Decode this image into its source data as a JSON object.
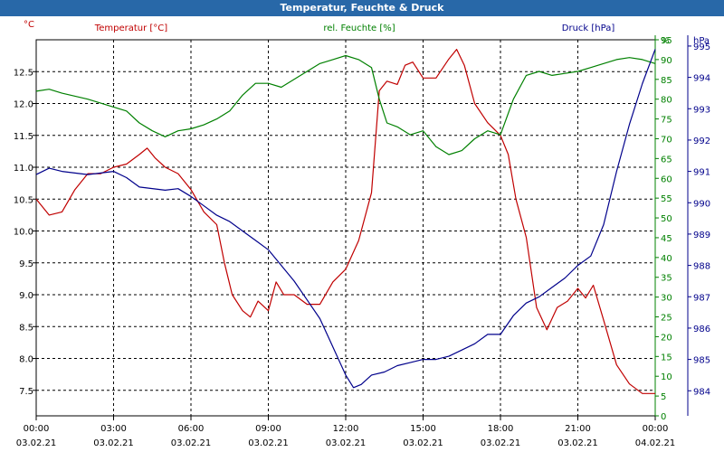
{
  "window_title": "Temperatur, Feuchte & Druck",
  "chart_data": {
    "type": "line",
    "title": "Temperatur, Feuchte & Druck",
    "x_ticks": [
      {
        "time": "00:00",
        "date": "03.02.21"
      },
      {
        "time": "03:00",
        "date": "03.02.21"
      },
      {
        "time": "06:00",
        "date": "03.02.21"
      },
      {
        "time": "09:00",
        "date": "03.02.21"
      },
      {
        "time": "12:00",
        "date": "03.02.21"
      },
      {
        "time": "15:00",
        "date": "03.02.21"
      },
      {
        "time": "18:00",
        "date": "03.02.21"
      },
      {
        "time": "21:00",
        "date": "03.02.21"
      },
      {
        "time": "00:00",
        "date": "04.02.21"
      }
    ],
    "x_range_hours": [
      0,
      24
    ],
    "axes": {
      "temperature": {
        "label": "Temperatur [°C]",
        "unit": "°C",
        "range": [
          7.1,
          13.0
        ],
        "ticks": [
          "7.5",
          "8.0",
          "8.5",
          "9.0",
          "9.5",
          "10.0",
          "10.5",
          "11.0",
          "11.5",
          "12.0",
          "12.5"
        ],
        "color": "#c00000"
      },
      "humidity": {
        "label": "rel. Feuchte [%]",
        "unit": "%",
        "range": [
          0,
          95
        ],
        "ticks": [
          "0",
          "5",
          "10",
          "15",
          "20",
          "25",
          "30",
          "35",
          "40",
          "45",
          "50",
          "55",
          "60",
          "65",
          "70",
          "75",
          "80",
          "85",
          "90",
          "95"
        ],
        "top_label": "%",
        "color": "#008000"
      },
      "pressure": {
        "label": "Druck [hPa]",
        "unit": "hPa",
        "range": [
          983.2,
          995.2
        ],
        "ticks": [
          "984",
          "985",
          "986",
          "987",
          "988",
          "989",
          "990",
          "991",
          "992",
          "993",
          "994",
          "995"
        ],
        "color": "#00008b"
      }
    },
    "series": [
      {
        "name": "Temperatur",
        "axis": "temperature",
        "color": "#c00000",
        "points": [
          [
            0,
            10.5
          ],
          [
            0.5,
            10.25
          ],
          [
            1,
            10.3
          ],
          [
            1.5,
            10.65
          ],
          [
            2,
            10.9
          ],
          [
            2.5,
            10.9
          ],
          [
            3,
            11.0
          ],
          [
            3.5,
            11.05
          ],
          [
            4,
            11.2
          ],
          [
            4.3,
            11.3
          ],
          [
            4.6,
            11.15
          ],
          [
            5,
            11.0
          ],
          [
            5.5,
            10.9
          ],
          [
            6,
            10.65
          ],
          [
            6.5,
            10.3
          ],
          [
            7,
            10.1
          ],
          [
            7.3,
            9.5
          ],
          [
            7.6,
            9.0
          ],
          [
            8,
            8.75
          ],
          [
            8.3,
            8.65
          ],
          [
            8.6,
            8.9
          ],
          [
            9,
            8.75
          ],
          [
            9.3,
            9.2
          ],
          [
            9.6,
            9.0
          ],
          [
            10,
            9.0
          ],
          [
            10.5,
            8.85
          ],
          [
            11,
            8.85
          ],
          [
            11.5,
            9.2
          ],
          [
            12,
            9.4
          ],
          [
            12.5,
            9.85
          ],
          [
            13,
            10.6
          ],
          [
            13.3,
            12.2
          ],
          [
            13.6,
            12.35
          ],
          [
            14,
            12.3
          ],
          [
            14.3,
            12.6
          ],
          [
            14.6,
            12.65
          ],
          [
            15,
            12.4
          ],
          [
            15.5,
            12.4
          ],
          [
            16,
            12.7
          ],
          [
            16.3,
            12.85
          ],
          [
            16.6,
            12.6
          ],
          [
            17,
            12.0
          ],
          [
            17.5,
            11.7
          ],
          [
            18,
            11.5
          ],
          [
            18.3,
            11.2
          ],
          [
            18.6,
            10.5
          ],
          [
            19,
            9.9
          ],
          [
            19.4,
            8.8
          ],
          [
            19.8,
            8.45
          ],
          [
            20.2,
            8.8
          ],
          [
            20.6,
            8.9
          ],
          [
            21,
            9.1
          ],
          [
            21.3,
            8.95
          ],
          [
            21.6,
            9.15
          ],
          [
            22,
            8.6
          ],
          [
            22.5,
            7.9
          ],
          [
            23,
            7.6
          ],
          [
            23.5,
            7.45
          ],
          [
            24,
            7.45
          ]
        ]
      },
      {
        "name": "rel. Feuchte",
        "axis": "humidity",
        "color": "#008000",
        "points": [
          [
            0,
            82
          ],
          [
            0.5,
            82.5
          ],
          [
            1,
            81.5
          ],
          [
            2,
            80
          ],
          [
            3,
            78
          ],
          [
            3.5,
            77
          ],
          [
            4,
            74
          ],
          [
            4.5,
            72
          ],
          [
            5,
            70.5
          ],
          [
            5.5,
            72
          ],
          [
            6,
            72.5
          ],
          [
            6.5,
            73.5
          ],
          [
            7,
            75
          ],
          [
            7.5,
            77
          ],
          [
            8,
            81
          ],
          [
            8.5,
            84
          ],
          [
            9,
            84
          ],
          [
            9.5,
            83
          ],
          [
            10,
            85
          ],
          [
            11,
            89
          ],
          [
            11.5,
            90
          ],
          [
            12,
            91
          ],
          [
            12.5,
            90
          ],
          [
            13,
            88
          ],
          [
            13.3,
            80
          ],
          [
            13.6,
            74
          ],
          [
            14,
            73
          ],
          [
            14.5,
            71
          ],
          [
            15,
            72
          ],
          [
            15.5,
            68
          ],
          [
            16,
            66
          ],
          [
            16.5,
            67
          ],
          [
            17,
            70
          ],
          [
            17.5,
            72
          ],
          [
            18,
            71
          ],
          [
            18.5,
            80
          ],
          [
            19,
            86
          ],
          [
            19.5,
            87
          ],
          [
            20,
            86
          ],
          [
            20.5,
            86.5
          ],
          [
            21,
            87
          ],
          [
            21.5,
            88
          ],
          [
            22,
            89
          ],
          [
            22.5,
            90
          ],
          [
            23,
            90.5
          ],
          [
            23.5,
            90
          ],
          [
            24,
            89
          ]
        ]
      },
      {
        "name": "Druck",
        "axis": "pressure",
        "color": "#00008b",
        "points": [
          [
            0,
            990.9
          ],
          [
            0.5,
            991.1
          ],
          [
            1,
            991.0
          ],
          [
            2,
            990.9
          ],
          [
            3,
            991.0
          ],
          [
            3.5,
            990.8
          ],
          [
            4,
            990.5
          ],
          [
            5,
            990.4
          ],
          [
            5.5,
            990.45
          ],
          [
            6,
            990.2
          ],
          [
            6.5,
            989.9
          ],
          [
            7,
            989.6
          ],
          [
            7.5,
            989.4
          ],
          [
            8,
            989.1
          ],
          [
            8.5,
            988.8
          ],
          [
            9,
            988.5
          ],
          [
            9.5,
            988.0
          ],
          [
            10,
            987.5
          ],
          [
            10.5,
            986.9
          ],
          [
            11,
            986.3
          ],
          [
            11.5,
            985.4
          ],
          [
            12,
            984.5
          ],
          [
            12.3,
            984.1
          ],
          [
            12.6,
            984.2
          ],
          [
            13,
            984.5
          ],
          [
            13.5,
            984.6
          ],
          [
            14,
            984.8
          ],
          [
            14.5,
            984.9
          ],
          [
            15,
            985.0
          ],
          [
            15.5,
            985.0
          ],
          [
            16,
            985.1
          ],
          [
            16.5,
            985.3
          ],
          [
            17,
            985.5
          ],
          [
            17.5,
            985.8
          ],
          [
            18,
            985.8
          ],
          [
            18.5,
            986.4
          ],
          [
            19,
            986.8
          ],
          [
            19.5,
            987.0
          ],
          [
            20,
            987.3
          ],
          [
            20.5,
            987.6
          ],
          [
            21,
            988.0
          ],
          [
            21.5,
            988.3
          ],
          [
            22,
            989.3
          ],
          [
            22.5,
            991.0
          ],
          [
            23,
            992.5
          ],
          [
            23.5,
            993.8
          ],
          [
            24,
            994.9
          ]
        ]
      }
    ],
    "grid": true
  }
}
